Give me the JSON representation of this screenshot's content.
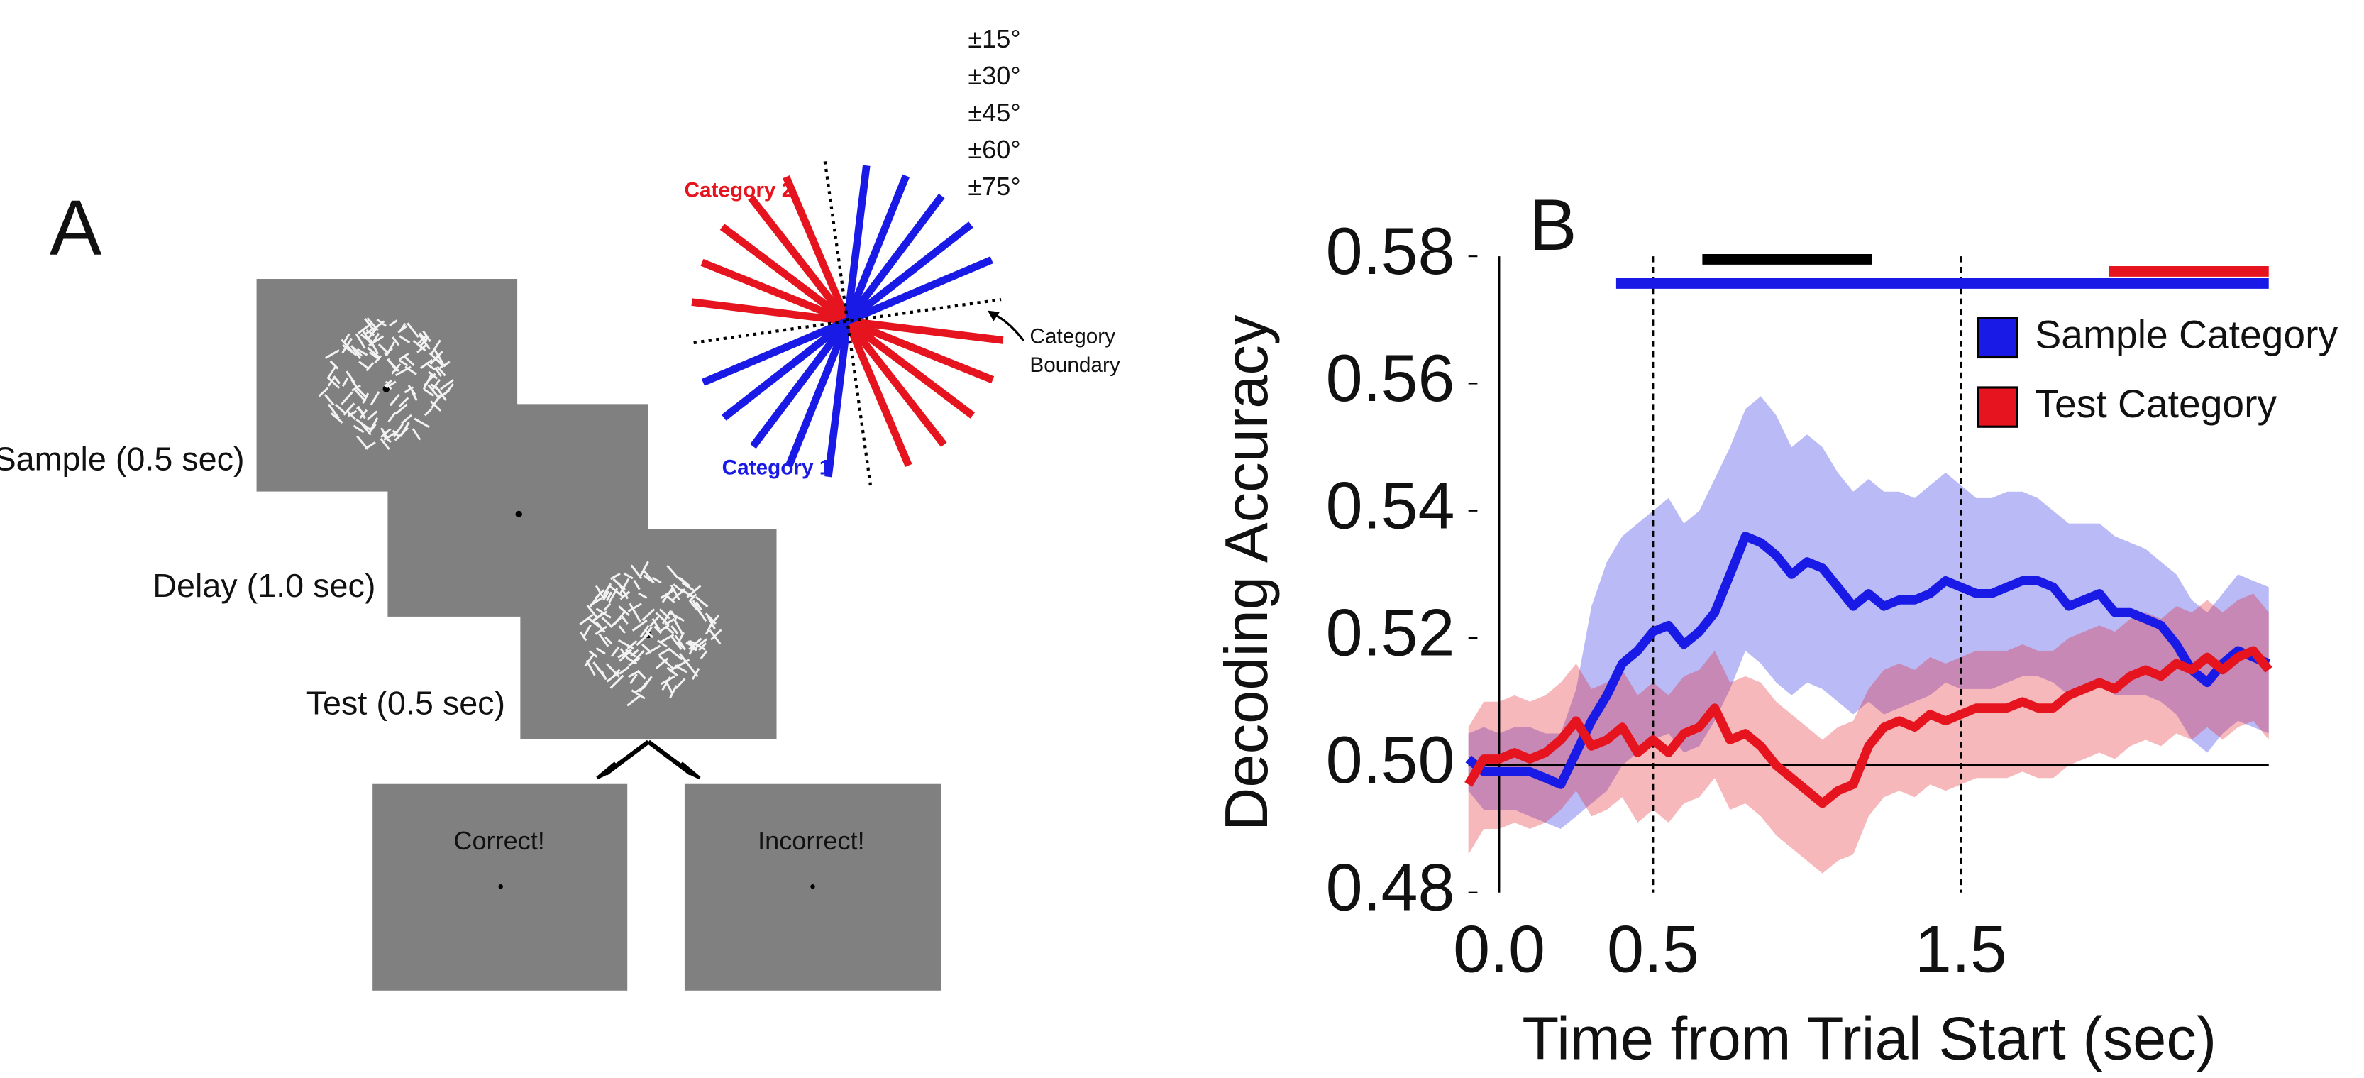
{
  "panel_a": {
    "label": "A",
    "orientations": [
      {
        "value": 15,
        "label": "±15°"
      },
      {
        "value": 30,
        "label": "±30°"
      },
      {
        "value": 45,
        "label": "±45°"
      },
      {
        "value": 60,
        "label": "±60°"
      },
      {
        "value": 75,
        "label": "±75°"
      }
    ],
    "category_2": "Category 2",
    "category_1": "Category 1",
    "boundary_label": [
      "Category",
      "Boundary"
    ],
    "screens": {
      "sample": "Sample (0.5 sec)",
      "delay": "Delay (1.0 sec)",
      "test": "Test (0.5 sec)",
      "correct": "Correct!",
      "incorrect": "Incorrect!"
    }
  },
  "chart_data": {
    "type": "line",
    "panel_label": "B",
    "xlabel": "Time from Trial Start (sec)",
    "ylabel": "Decoding Accuracy",
    "x": [
      -0.1,
      -0.05,
      0,
      0.05,
      0.1,
      0.15,
      0.2,
      0.25,
      0.3,
      0.35,
      0.4,
      0.45,
      0.5,
      0.55,
      0.6,
      0.65,
      0.7,
      0.75,
      0.8,
      0.85,
      0.9,
      0.95,
      1.0,
      1.05,
      1.1,
      1.15,
      1.2,
      1.25,
      1.3,
      1.35,
      1.4,
      1.45,
      1.5,
      1.55,
      1.6,
      1.65,
      1.7,
      1.75,
      1.8,
      1.85,
      1.9,
      1.95,
      2.0,
      2.05,
      2.1,
      2.15,
      2.2,
      2.25,
      2.3,
      2.35,
      2.4,
      2.45,
      2.5
    ],
    "xlim": [
      -0.1,
      2.5
    ],
    "ylim": [
      0.48,
      0.58
    ],
    "xticks": [
      {
        "value": 0,
        "label": "0.0"
      },
      0.5,
      1.5
    ],
    "yticks": [
      0.48,
      {
        "value": 0.5,
        "label": "0.50"
      },
      0.52,
      0.54,
      0.56,
      0.58
    ],
    "legend": "upper right",
    "series": [
      {
        "name": "Sample Category",
        "color": "#1a1ae6",
        "values": [
          0.501,
          0.499,
          0.499,
          0.499,
          0.499,
          0.498,
          0.497,
          0.502,
          0.507,
          0.511,
          0.516,
          0.518,
          0.521,
          0.522,
          0.519,
          0.521,
          0.524,
          0.53,
          0.536,
          0.535,
          0.533,
          0.53,
          0.532,
          0.531,
          0.528,
          0.525,
          0.527,
          0.525,
          0.526,
          0.526,
          0.527,
          0.529,
          0.528,
          0.527,
          0.527,
          0.528,
          0.529,
          0.529,
          0.528,
          0.525,
          0.526,
          0.527,
          0.524,
          0.524,
          0.523,
          0.522,
          0.519,
          0.515,
          0.513,
          0.516,
          0.518,
          0.517,
          0.516
        ],
        "upper": [
          0.505,
          0.506,
          0.505,
          0.506,
          0.506,
          0.505,
          0.505,
          0.512,
          0.525,
          0.532,
          0.536,
          0.538,
          0.54,
          0.542,
          0.538,
          0.54,
          0.545,
          0.55,
          0.556,
          0.558,
          0.555,
          0.55,
          0.552,
          0.55,
          0.546,
          0.543,
          0.545,
          0.543,
          0.543,
          0.542,
          0.544,
          0.546,
          0.544,
          0.542,
          0.542,
          0.543,
          0.543,
          0.542,
          0.54,
          0.538,
          0.538,
          0.538,
          0.536,
          0.535,
          0.534,
          0.532,
          0.53,
          0.526,
          0.524,
          0.527,
          0.53,
          0.529,
          0.528
        ],
        "lower": [
          0.496,
          0.493,
          0.493,
          0.493,
          0.492,
          0.491,
          0.49,
          0.492,
          0.494,
          0.496,
          0.5,
          0.502,
          0.504,
          0.505,
          0.502,
          0.503,
          0.507,
          0.512,
          0.518,
          0.516,
          0.513,
          0.511,
          0.513,
          0.512,
          0.51,
          0.508,
          0.51,
          0.508,
          0.509,
          0.51,
          0.511,
          0.513,
          0.512,
          0.512,
          0.512,
          0.513,
          0.514,
          0.514,
          0.513,
          0.511,
          0.512,
          0.513,
          0.511,
          0.511,
          0.511,
          0.51,
          0.508,
          0.504,
          0.502,
          0.505,
          0.507,
          0.506,
          0.505
        ]
      },
      {
        "name": "Test Category",
        "color": "#e6141e",
        "values": [
          0.497,
          0.501,
          0.501,
          0.502,
          0.501,
          0.502,
          0.504,
          0.507,
          0.503,
          0.504,
          0.506,
          0.502,
          0.504,
          0.502,
          0.505,
          0.506,
          0.509,
          0.504,
          0.505,
          0.503,
          0.5,
          0.498,
          0.496,
          0.494,
          0.496,
          0.497,
          0.503,
          0.506,
          0.507,
          0.506,
          0.508,
          0.507,
          0.508,
          0.509,
          0.509,
          0.509,
          0.51,
          0.509,
          0.509,
          0.511,
          0.512,
          0.513,
          0.512,
          0.514,
          0.515,
          0.514,
          0.516,
          0.515,
          0.517,
          0.515,
          0.517,
          0.518,
          0.515
        ],
        "upper": [
          0.506,
          0.51,
          0.51,
          0.511,
          0.51,
          0.511,
          0.513,
          0.516,
          0.512,
          0.513,
          0.515,
          0.511,
          0.513,
          0.511,
          0.514,
          0.515,
          0.518,
          0.513,
          0.514,
          0.513,
          0.51,
          0.508,
          0.506,
          0.504,
          0.506,
          0.507,
          0.512,
          0.515,
          0.516,
          0.515,
          0.517,
          0.516,
          0.517,
          0.518,
          0.518,
          0.518,
          0.519,
          0.518,
          0.518,
          0.52,
          0.521,
          0.522,
          0.521,
          0.523,
          0.524,
          0.523,
          0.525,
          0.524,
          0.526,
          0.524,
          0.526,
          0.527,
          0.524
        ],
        "lower": [
          0.486,
          0.49,
          0.49,
          0.491,
          0.49,
          0.491,
          0.493,
          0.496,
          0.492,
          0.493,
          0.495,
          0.491,
          0.493,
          0.491,
          0.494,
          0.495,
          0.498,
          0.493,
          0.494,
          0.492,
          0.489,
          0.487,
          0.485,
          0.483,
          0.485,
          0.486,
          0.492,
          0.495,
          0.496,
          0.495,
          0.497,
          0.496,
          0.497,
          0.498,
          0.498,
          0.498,
          0.499,
          0.498,
          0.498,
          0.5,
          0.501,
          0.502,
          0.501,
          0.503,
          0.504,
          0.503,
          0.505,
          0.504,
          0.506,
          0.504,
          0.506,
          0.507,
          0.504
        ]
      }
    ],
    "vlines": [
      {
        "value": 0,
        "style": "solid"
      },
      {
        "value": 0.5,
        "style": "dashed"
      },
      {
        "value": 1.5,
        "style": "dashed"
      }
    ],
    "hline": 0.5,
    "significance_bars": [
      {
        "color": "#000000",
        "start": 0.66,
        "end": 1.21
      },
      {
        "color": "#e6141e",
        "start": 1.98,
        "end": 2.5
      },
      {
        "color": "#1a1ae6",
        "start": 0.38,
        "end": 2.5
      }
    ]
  }
}
